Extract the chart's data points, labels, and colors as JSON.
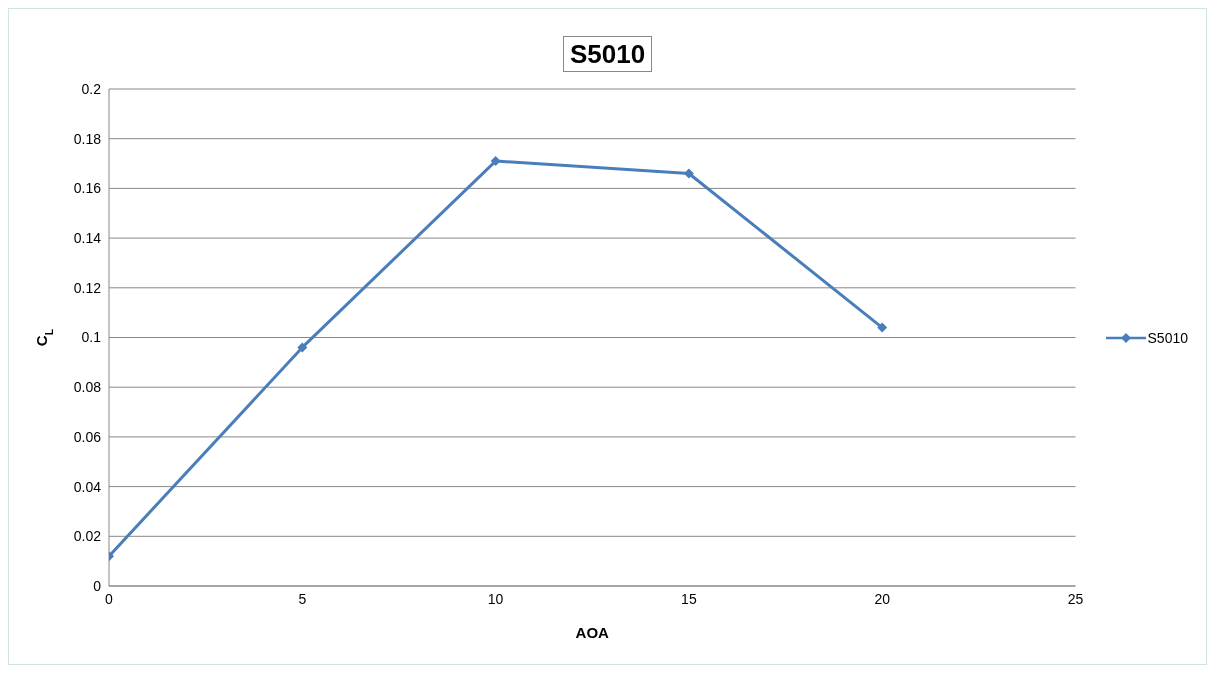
{
  "chart_data": {
    "type": "line",
    "title": "S5010",
    "xlabel": "AOA",
    "ylabel": "C$_{L}$",
    "x": [
      0,
      5,
      10,
      15,
      20
    ],
    "series": [
      {
        "name": "S5010",
        "color": "#4a7ebb",
        "values": [
          0.012,
          0.096,
          0.171,
          0.166,
          0.104
        ]
      }
    ],
    "xlim": [
      0,
      25
    ],
    "xticks": [
      0,
      5,
      10,
      15,
      20,
      25
    ],
    "ylim": [
      0,
      0.2
    ],
    "yticks": [
      0,
      0.02,
      0.04,
      0.06,
      0.08,
      0.1,
      0.12,
      0.14,
      0.16,
      0.18,
      0.2
    ],
    "grid": "y",
    "legend": "right",
    "marker": "diamond",
    "line_style": "solid"
  }
}
